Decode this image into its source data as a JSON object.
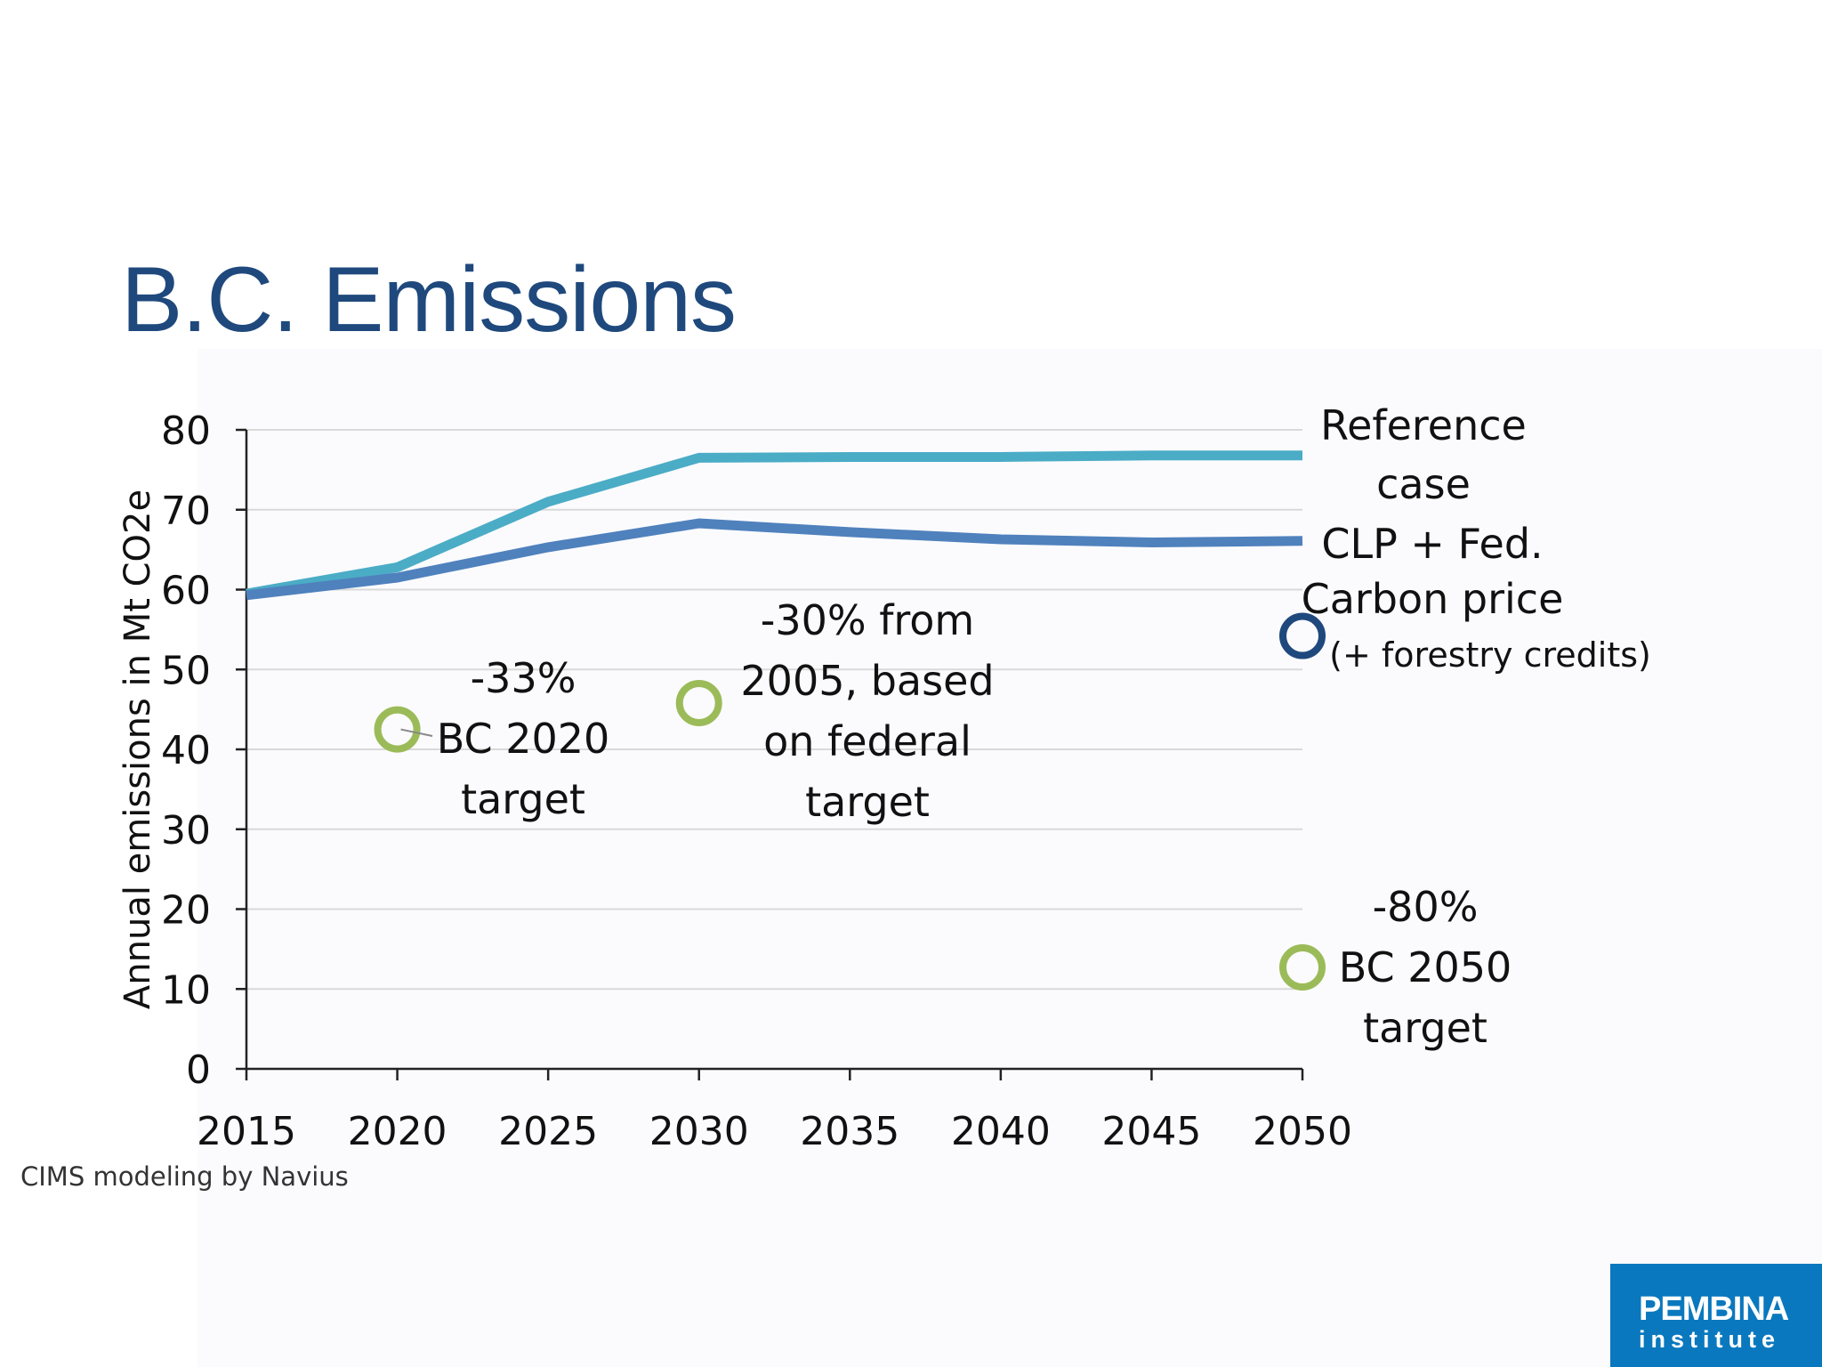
{
  "slide": {
    "title": "B.C. Emissions",
    "source": "CIMS modeling by Navius"
  },
  "logo": {
    "line1": "PEMBINA",
    "line2": "institute"
  },
  "colors": {
    "reference_line": "#4bacc6",
    "clp_line": "#4f81bd",
    "target_marker": "#9bbb59",
    "forestry_marker": "#1f497d",
    "axis": "#222222",
    "grid": "#d9d9d9",
    "title": "#1f497d",
    "logo_bg": "#0a78be"
  },
  "chart_data": {
    "type": "line",
    "ylabel": "Annual emissions in Mt CO2e",
    "xlabel": "",
    "ylim": [
      0,
      80
    ],
    "xlim": [
      2015,
      2050
    ],
    "yticks": [
      0,
      10,
      20,
      30,
      40,
      50,
      60,
      70,
      80
    ],
    "xticks": [
      2015,
      2020,
      2025,
      2030,
      2035,
      2040,
      2045,
      2050
    ],
    "ytick_labels": [
      "0",
      "10",
      "20",
      "30",
      "40",
      "50",
      "60",
      "70",
      "80"
    ],
    "xtick_labels": [
      "2015",
      "2020",
      "2025",
      "2030",
      "2035",
      "2040",
      "2045",
      "2050"
    ],
    "grid": true,
    "series": [
      {
        "name": "Reference case",
        "label_lines": [
          "Reference",
          "case"
        ],
        "x": [
          2015,
          2020,
          2025,
          2030,
          2035,
          2040,
          2045,
          2050
        ],
        "values": [
          59.5,
          62.8,
          71.0,
          76.5,
          76.6,
          76.6,
          76.8,
          76.8
        ]
      },
      {
        "name": "CLP + Fed. Carbon price",
        "label_lines": [
          "CLP + Fed.",
          "Carbon price"
        ],
        "x": [
          2015,
          2020,
          2025,
          2030,
          2035,
          2040,
          2045,
          2050
        ],
        "values": [
          59.3,
          61.5,
          65.3,
          68.3,
          67.2,
          66.3,
          65.9,
          66.1
        ]
      }
    ],
    "points": [
      {
        "name": "(+ forestry credits)",
        "x": 2050,
        "y": 54.2,
        "lines": [
          "(+ forestry credits)"
        ]
      },
      {
        "name": "BC 2020 target",
        "x": 2020,
        "y": 42.5,
        "lines": [
          "-33%",
          "BC 2020",
          "target"
        ]
      },
      {
        "name": "federal target",
        "x": 2030,
        "y": 45.8,
        "lines": [
          "-30% from",
          "2005, based",
          "on federal",
          "target"
        ]
      },
      {
        "name": "BC 2050 target",
        "x": 2050,
        "y": 12.7,
        "lines": [
          "-80%",
          "BC 2050",
          "target"
        ]
      }
    ]
  }
}
